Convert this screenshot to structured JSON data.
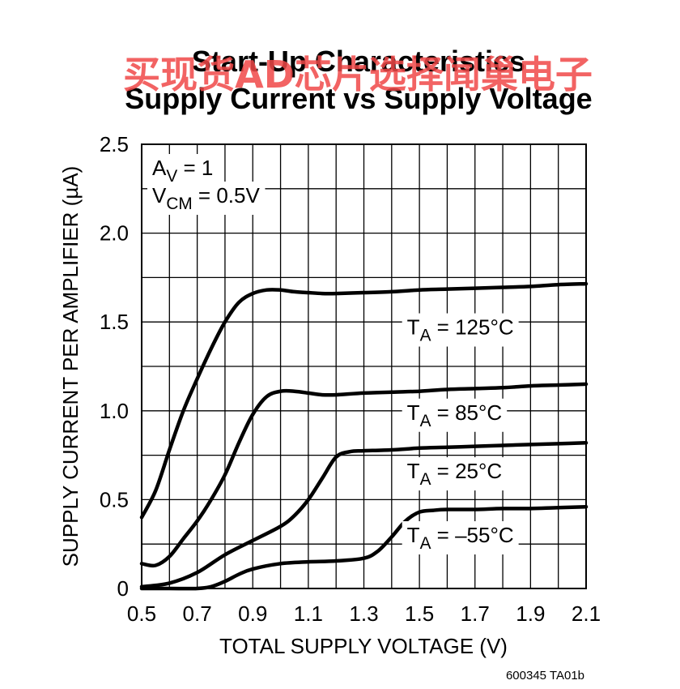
{
  "chart_data": {
    "type": "line",
    "title": "Start-Up Characteristics",
    "subtitle": "Supply Current vs Supply Voltage",
    "xlabel": "TOTAL SUPPLY VOLTAGE (V)",
    "ylabel": "SUPPLY CURRENT PER AMPLIFIER (µA)",
    "xlim": [
      0.5,
      2.1
    ],
    "ylim": [
      0,
      2.5
    ],
    "x_ticks": [
      "0.5",
      "0.7",
      "0.9",
      "1.1",
      "1.3",
      "1.5",
      "1.7",
      "1.9",
      "2.1"
    ],
    "y_ticks": [
      "0",
      "0.5",
      "1.0",
      "1.5",
      "2.0",
      "2.5"
    ],
    "grid": true,
    "conditions": {
      "av": {
        "main": "A",
        "sub": "V",
        "rest": " = 1"
      },
      "vcm": {
        "main": "V",
        "sub": "CM",
        "rest": " = 0.5V"
      }
    },
    "series": [
      {
        "name": "T_A = 125°C",
        "label": {
          "main": "T",
          "sub": "A",
          "rest": " = 125°C"
        },
        "x": [
          0.5,
          0.55,
          0.6,
          0.65,
          0.7,
          0.75,
          0.8,
          0.85,
          0.9,
          0.95,
          1.0,
          1.05,
          1.1,
          1.15,
          1.2,
          1.3,
          1.4,
          1.5,
          1.6,
          1.7,
          1.8,
          1.9,
          2.0,
          2.1
        ],
        "values": [
          0.4,
          0.55,
          0.78,
          1.0,
          1.18,
          1.35,
          1.5,
          1.61,
          1.66,
          1.68,
          1.68,
          1.67,
          1.665,
          1.66,
          1.66,
          1.665,
          1.67,
          1.68,
          1.685,
          1.69,
          1.695,
          1.7,
          1.71,
          1.715
        ]
      },
      {
        "name": "T_A = 85°C",
        "label": {
          "main": "T",
          "sub": "A",
          "rest": " = 85°C"
        },
        "x": [
          0.5,
          0.55,
          0.6,
          0.65,
          0.7,
          0.75,
          0.8,
          0.85,
          0.9,
          0.95,
          1.0,
          1.05,
          1.1,
          1.15,
          1.2,
          1.3,
          1.4,
          1.5,
          1.6,
          1.7,
          1.8,
          1.9,
          2.0,
          2.1
        ],
        "values": [
          0.14,
          0.13,
          0.18,
          0.28,
          0.38,
          0.5,
          0.64,
          0.82,
          0.98,
          1.08,
          1.11,
          1.11,
          1.1,
          1.09,
          1.09,
          1.1,
          1.105,
          1.11,
          1.12,
          1.125,
          1.13,
          1.14,
          1.145,
          1.15
        ]
      },
      {
        "name": "T_A = 25°C",
        "label": {
          "main": "T",
          "sub": "A",
          "rest": " = 25°C"
        },
        "x": [
          0.5,
          0.6,
          0.7,
          0.8,
          0.9,
          1.0,
          1.05,
          1.1,
          1.15,
          1.2,
          1.25,
          1.3,
          1.4,
          1.5,
          1.6,
          1.7,
          1.8,
          1.9,
          2.0,
          2.1
        ],
        "values": [
          0.01,
          0.03,
          0.09,
          0.19,
          0.27,
          0.35,
          0.41,
          0.5,
          0.62,
          0.74,
          0.77,
          0.775,
          0.78,
          0.79,
          0.795,
          0.8,
          0.805,
          0.81,
          0.815,
          0.82
        ]
      },
      {
        "name": "T_A = –55°C",
        "label": {
          "main": "T",
          "sub": "A",
          "rest": " = –55°C"
        },
        "x": [
          0.5,
          0.6,
          0.7,
          0.75,
          0.8,
          0.85,
          0.9,
          1.0,
          1.1,
          1.2,
          1.3,
          1.35,
          1.4,
          1.45,
          1.5,
          1.55,
          1.6,
          1.7,
          1.8,
          1.9,
          2.0,
          2.1
        ],
        "values": [
          0.0,
          0.0,
          0.0,
          0.01,
          0.04,
          0.08,
          0.11,
          0.14,
          0.15,
          0.155,
          0.17,
          0.21,
          0.29,
          0.38,
          0.43,
          0.44,
          0.445,
          0.445,
          0.45,
          0.45,
          0.455,
          0.46
        ]
      }
    ]
  },
  "watermark": "买现货AD芯片选择闻巢电子",
  "figure_code": "600345 TA01b",
  "colors": {
    "line": "#000000",
    "grid": "#000000",
    "watermark": "#f04848"
  }
}
